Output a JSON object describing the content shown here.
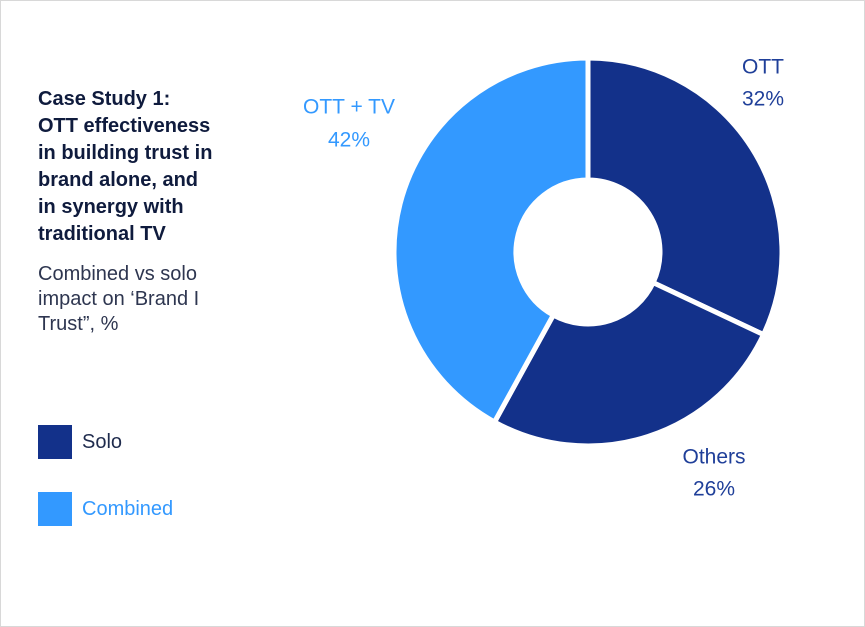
{
  "header": {
    "title": "Case Study 1:\nOTT effectiveness\nin building trust in\nbrand alone, and\nin synergy with\ntraditional TV",
    "subtitle": "Combined vs solo\nimpact on ‘Brand I\nTrust”, %"
  },
  "colors": {
    "solo": "#13318a",
    "combined": "#3399ff",
    "label_dark": "#1f3f99",
    "label_light": "#3399ff"
  },
  "legend": {
    "items": [
      {
        "label": "Solo",
        "color": "#13318a"
      },
      {
        "label": "Combined",
        "color": "#3399ff"
      }
    ]
  },
  "chart_data": {
    "type": "pie",
    "style": "donut",
    "slices": [
      {
        "name": "OTT",
        "value": 32,
        "value_label": "32%",
        "group": "Solo",
        "color": "#13318a"
      },
      {
        "name": "Others",
        "value": 26,
        "value_label": "26%",
        "group": "Solo",
        "color": "#13318a"
      },
      {
        "name": "OTT + TV",
        "value": 42,
        "value_label": "42%",
        "group": "Combined",
        "color": "#3399ff"
      }
    ],
    "start": "top",
    "direction": "clockwise",
    "legend_position": "left"
  }
}
